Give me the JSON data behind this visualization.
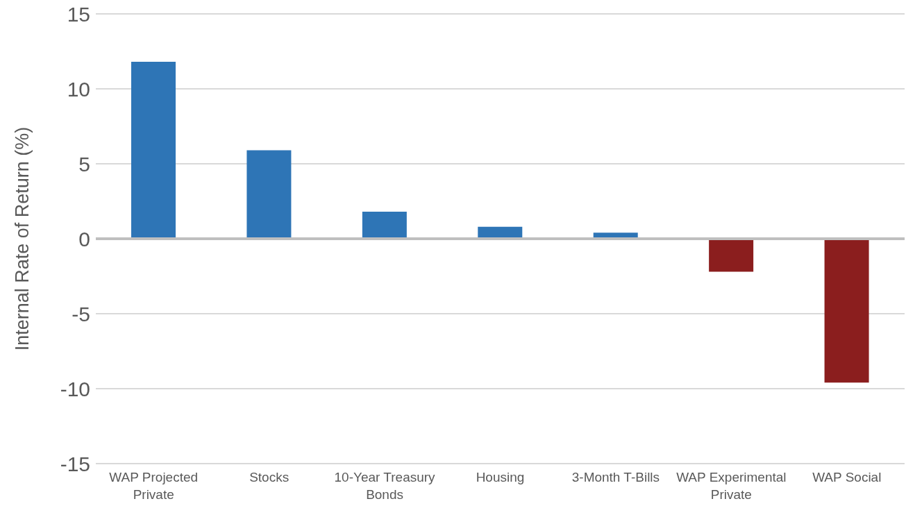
{
  "chart_data": {
    "type": "bar",
    "ylabel": "Internal Rate of Return (%)",
    "categories": [
      "WAP Projected Private",
      "Stocks",
      "10-Year Treasury Bonds",
      "Housing",
      "3-Month T-Bills",
      "WAP Experimental Private",
      "WAP Social"
    ],
    "values": [
      11.8,
      5.9,
      1.8,
      0.8,
      0.4,
      -2.2,
      -9.6
    ],
    "colors": [
      "#2e75b6",
      "#2e75b6",
      "#2e75b6",
      "#2e75b6",
      "#2e75b6",
      "#8b1e1e",
      "#8b1e1e"
    ],
    "ylim": [
      -15,
      15
    ],
    "yticks": [
      -15,
      -10,
      -5,
      0,
      5,
      10,
      15
    ],
    "grid": "y",
    "legend": false
  }
}
